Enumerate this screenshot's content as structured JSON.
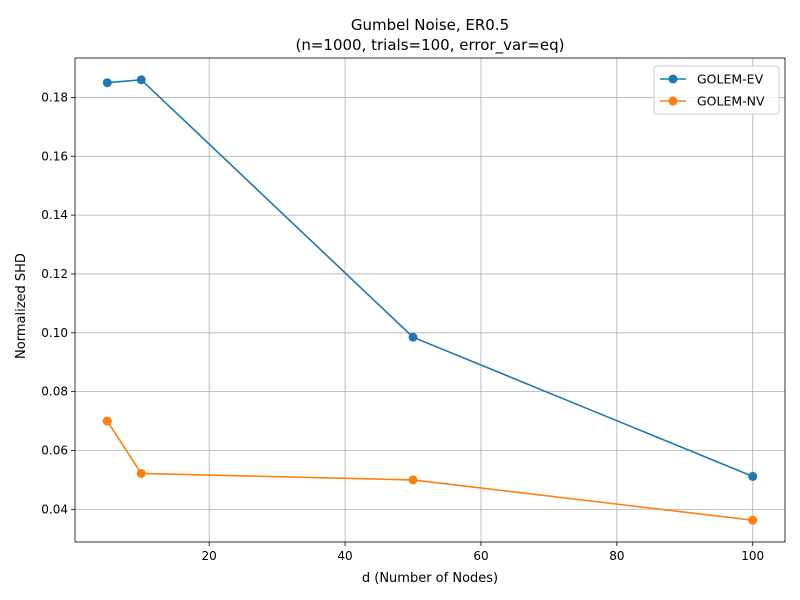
{
  "chart_data": {
    "type": "line",
    "title_line1": "Gumbel Noise, ER0.5",
    "title_line2": "(n=1000, trials=100, error_var=eq)",
    "xlabel": "d (Number of Nodes)",
    "ylabel": "Normalized SHD",
    "x": [
      5,
      10,
      50,
      100
    ],
    "xlim": [
      0.25,
      104.75
    ],
    "ylim": [
      0.0289,
      0.1934
    ],
    "xticks": [
      20,
      40,
      60,
      80,
      100
    ],
    "yticks": [
      0.04,
      0.06,
      0.08,
      0.1,
      0.12,
      0.14,
      0.16,
      0.18
    ],
    "ytick_labels": [
      "0.04",
      "0.06",
      "0.08",
      "0.10",
      "0.12",
      "0.14",
      "0.16",
      "0.18"
    ],
    "grid": true,
    "legend_position": "top-right",
    "series": [
      {
        "name": "GOLEM-EV",
        "color": "#1f77b4",
        "values": [
          0.185,
          0.186,
          0.0985,
          0.0512
        ]
      },
      {
        "name": "GOLEM-NV",
        "color": "#ff7f0e",
        "values": [
          0.07,
          0.0522,
          0.05,
          0.0363
        ]
      }
    ]
  }
}
